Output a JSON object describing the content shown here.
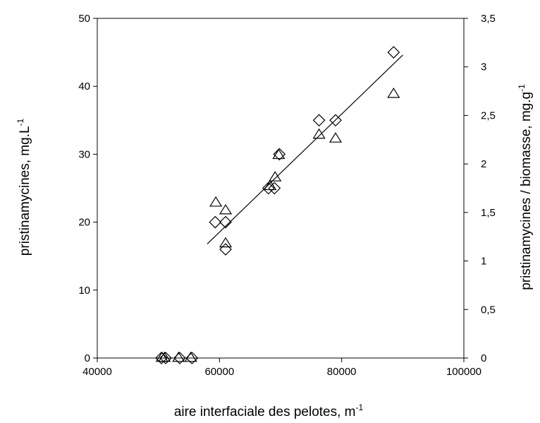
{
  "chart_data": {
    "type": "scatter",
    "xlabel": "aire interfaciale des pelotes, m",
    "xlabel_sup": "-1",
    "ylabel_left": "pristinamycines, mg.L",
    "ylabel_left_sup": "-1",
    "ylabel_right": "pristinamycines / biomasse, mg.g",
    "ylabel_right_sup": "-1",
    "xlim": [
      40000,
      100000
    ],
    "ylim_left": [
      0,
      50
    ],
    "ylim_right": [
      0,
      3.5
    ],
    "x_ticks": [
      {
        "value": 40000,
        "label": "40000"
      },
      {
        "value": 60000,
        "label": "60000"
      },
      {
        "value": 80000,
        "label": "80000"
      },
      {
        "value": 100000,
        "label": "100000"
      }
    ],
    "y_left_ticks": [
      {
        "value": 0,
        "label": "0"
      },
      {
        "value": 10,
        "label": "10"
      },
      {
        "value": 20,
        "label": "20"
      },
      {
        "value": 30,
        "label": "30"
      },
      {
        "value": 40,
        "label": "40"
      },
      {
        "value": 50,
        "label": "50"
      }
    ],
    "y_right_ticks": [
      {
        "value": 0,
        "label": "0"
      },
      {
        "value": 0.5,
        "label": "0,5"
      },
      {
        "value": 1,
        "label": "1"
      },
      {
        "value": 1.5,
        "label": "1,5"
      },
      {
        "value": 2,
        "label": "2"
      },
      {
        "value": 2.5,
        "label": "2,5"
      },
      {
        "value": 3,
        "label": "3"
      },
      {
        "value": 3.5,
        "label": "3,5"
      }
    ],
    "grid": false,
    "series": [
      {
        "marker": "diamond",
        "axis": "left",
        "points": [
          [
            50500,
            0
          ],
          [
            51200,
            0
          ],
          [
            53500,
            0
          ],
          [
            55500,
            0
          ],
          [
            59300,
            20
          ],
          [
            61000,
            20
          ],
          [
            61000,
            16
          ],
          [
            68000,
            25
          ],
          [
            69000,
            25
          ],
          [
            69800,
            30
          ],
          [
            76300,
            35
          ],
          [
            79000,
            35
          ],
          [
            88500,
            45
          ]
        ]
      },
      {
        "marker": "triangle",
        "axis": "right",
        "points": [
          [
            50600,
            0
          ],
          [
            51000,
            0
          ],
          [
            53300,
            0
          ],
          [
            55300,
            0
          ],
          [
            59400,
            1.6
          ],
          [
            61000,
            1.52
          ],
          [
            61000,
            1.18
          ],
          [
            68300,
            1.77
          ],
          [
            69100,
            1.86
          ],
          [
            69700,
            2.09
          ],
          [
            76300,
            2.3
          ],
          [
            79000,
            2.26
          ],
          [
            88500,
            2.72
          ]
        ]
      }
    ],
    "trendline": {
      "axis": "left",
      "points": [
        [
          58000,
          16.8
        ],
        [
          90000,
          44.6
        ]
      ]
    },
    "colors": {
      "marker_stroke": "#000000",
      "axis": "#000000",
      "background": "#ffffff"
    }
  }
}
